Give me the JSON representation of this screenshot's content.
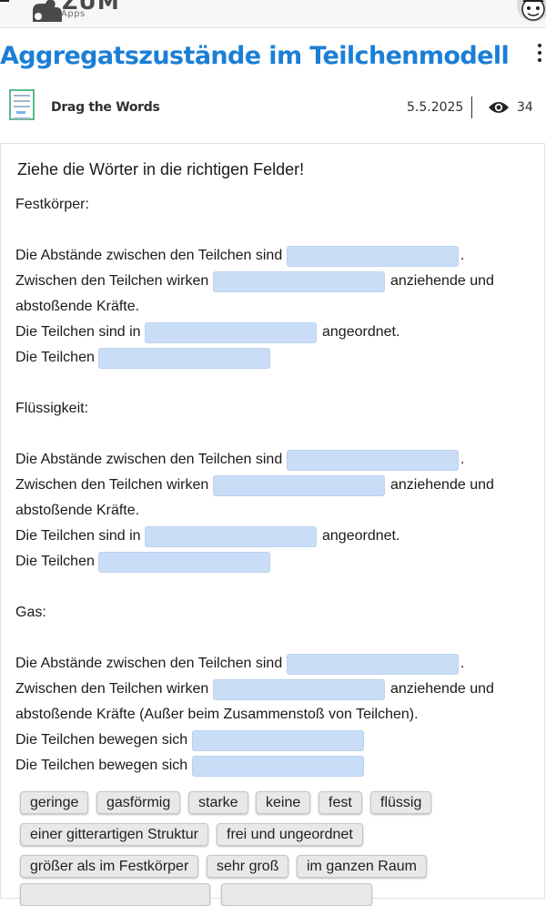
{
  "app": {
    "brand_name": "ZUM",
    "brand_sub": "Apps"
  },
  "page": {
    "title": "Aggregatszustände im Teilchenmodell",
    "content_type": "Drag the Words",
    "date": "5.5.2025",
    "views": "34"
  },
  "task": {
    "instruction": "Ziehe die Wörter in die richtigen Felder!",
    "lines": [
      "Festkörper:",
      "Die Abstände zwischen den Teilchen sind",
      ".",
      "Zwischen den Teilchen wirken",
      "anziehende und",
      "abstoßende Kräfte.",
      "Die Teilchen sind in",
      "angeordnet.",
      "Die Teilchen",
      "Flüssigkeit:",
      "Die Abstände zwischen den Teilchen sind",
      ".",
      "Zwischen den Teilchen wirken",
      "anziehende und",
      "abstoßende Kräfte.",
      "Die Teilchen sind in",
      "angeordnet.",
      "Die Teilchen",
      "Gas:",
      "Die Abstände zwischen den Teilchen sind",
      ".",
      "Zwischen den Teilchen wirken",
      "anziehende und",
      "abstoßende Kräfte (Außer beim Zusammenstoß von Teilchen).",
      "Die Teilchen bewegen sich",
      "Die Teilchen bewegen sich"
    ]
  },
  "word_bank": [
    "geringe",
    "gasförmig",
    "starke",
    "keine",
    "fest",
    "flüssig",
    "einer gitterartigen Struktur",
    "frei und ungeordnet",
    "größer als im Festkörper",
    "sehr groß",
    "im ganzen Raum"
  ],
  "colors": {
    "title": "#1b7fd6",
    "drop_zone": "#c9ddf7",
    "word_chip": "#e8e8e8"
  },
  "icons": [
    "menu-icon",
    "zum-logo",
    "avatar",
    "more-vert-icon",
    "drag-the-words-icon",
    "eye-icon"
  ]
}
